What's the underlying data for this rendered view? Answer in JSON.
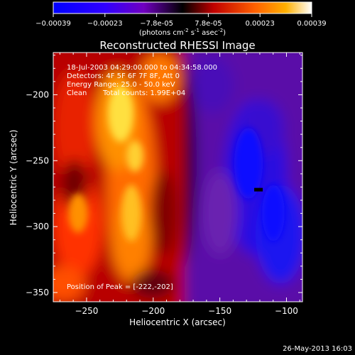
{
  "chart_data": {
    "type": "heatmap",
    "title": "Reconstructed RHESSI Image",
    "xlabel": "Heliocentric X (arcsec)",
    "ylabel": "Heliocentric Y (arcsec)",
    "xlim": [
      -275,
      -88
    ],
    "ylim": [
      -357,
      -168
    ],
    "x_ticks": [
      -250,
      -200,
      -150,
      -100
    ],
    "y_ticks": [
      -200,
      -250,
      -300,
      -350
    ],
    "colorbar": {
      "range": [
        -0.00039,
        0.00039
      ],
      "tick_labels": [
        "-0.00039",
        "-0.00023",
        "-7.8e-05",
        "7.8e-05",
        "0.00023",
        "0.00039"
      ],
      "unit_prefix": "(photons cm",
      "unit_exp1": "-2",
      "unit_mid": " s",
      "unit_exp2": "-1",
      "unit_mid2": " asec",
      "unit_exp3": "-2",
      "unit_suffix": ")"
    },
    "annotations": {
      "time_range": "18-Jul-2003 04:29:00.000 to 04:34:58.000",
      "detectors": "Detectors: 4F 5F 6F 7F 8F, Att 0",
      "energy_range": "Energy Range: 25.0 - 50.0 keV",
      "clean_label": "Clean",
      "total_counts": "Total counts: 1.99E+04",
      "peak_position": "Position of Peak = [-222,-202]"
    },
    "peak": {
      "x": -222,
      "y": -202
    },
    "marker": {
      "x": -121,
      "y": -272
    },
    "colors": {
      "background": "#000000",
      "negative": "#0000ff",
      "zero": "#000000",
      "positive_mid": "#ff2000",
      "positive_high": "#ffa000",
      "max": "#ffffff"
    }
  },
  "footer": {
    "timestamp": "26-May-2013 16:03"
  }
}
